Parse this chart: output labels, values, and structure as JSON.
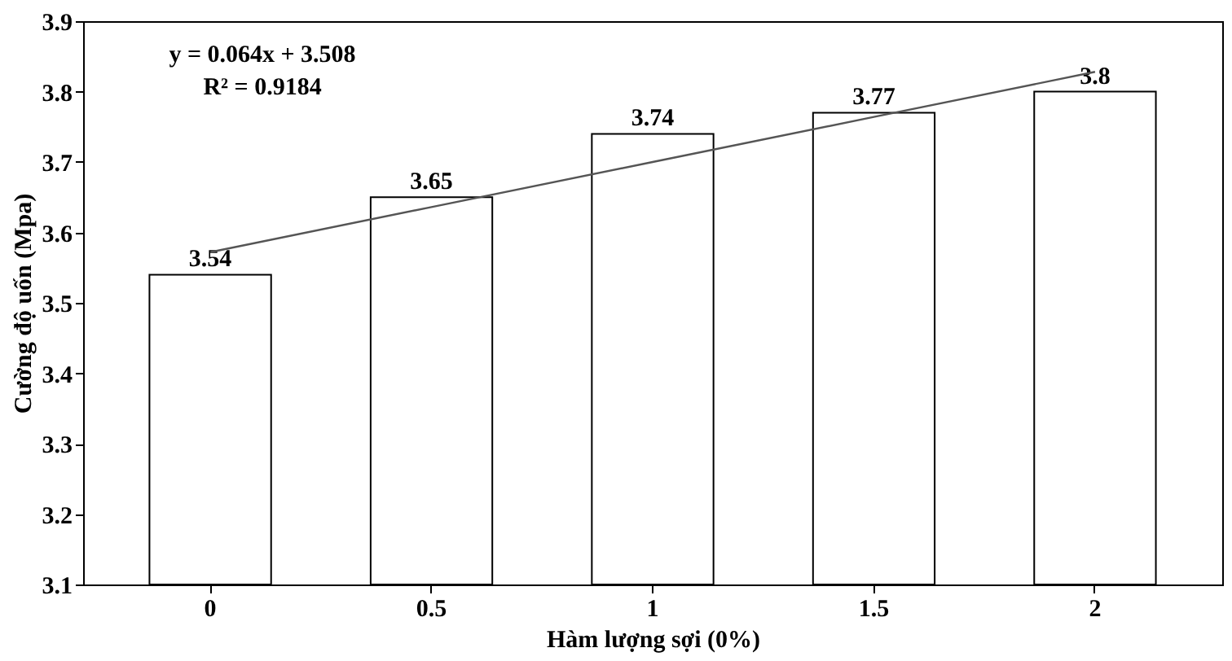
{
  "chart_data": {
    "type": "bar",
    "xlabel": "Hàm lượng sợi (0%)",
    "ylabel": "Cường độ uốn (Mpa)",
    "categories": [
      "0",
      "0.5",
      "1",
      "1.5",
      "2"
    ],
    "series": [
      {
        "color": "#ffffff",
        "values": [
          3.54,
          3.65,
          3.74,
          3.77,
          3.8
        ],
        "value_labels": [
          "3.54",
          "3.65",
          "3.74",
          "3.77",
          "3.8"
        ]
      },
      {
        "type": "line",
        "color": "#555555",
        "x": [
          "0",
          "0.5",
          "1",
          "1.5",
          "2"
        ],
        "values": [
          3.572,
          3.636,
          3.7,
          3.764,
          3.828
        ]
      }
    ],
    "ylim": [
      3.1,
      3.9
    ],
    "yticks": [
      3.1,
      3.2,
      3.3,
      3.4,
      3.5,
      3.6,
      3.7,
      3.8,
      3.9
    ],
    "grid": false,
    "annotations": [
      "y = 0.064x + 3.508",
      "R² = 0.9184"
    ]
  }
}
